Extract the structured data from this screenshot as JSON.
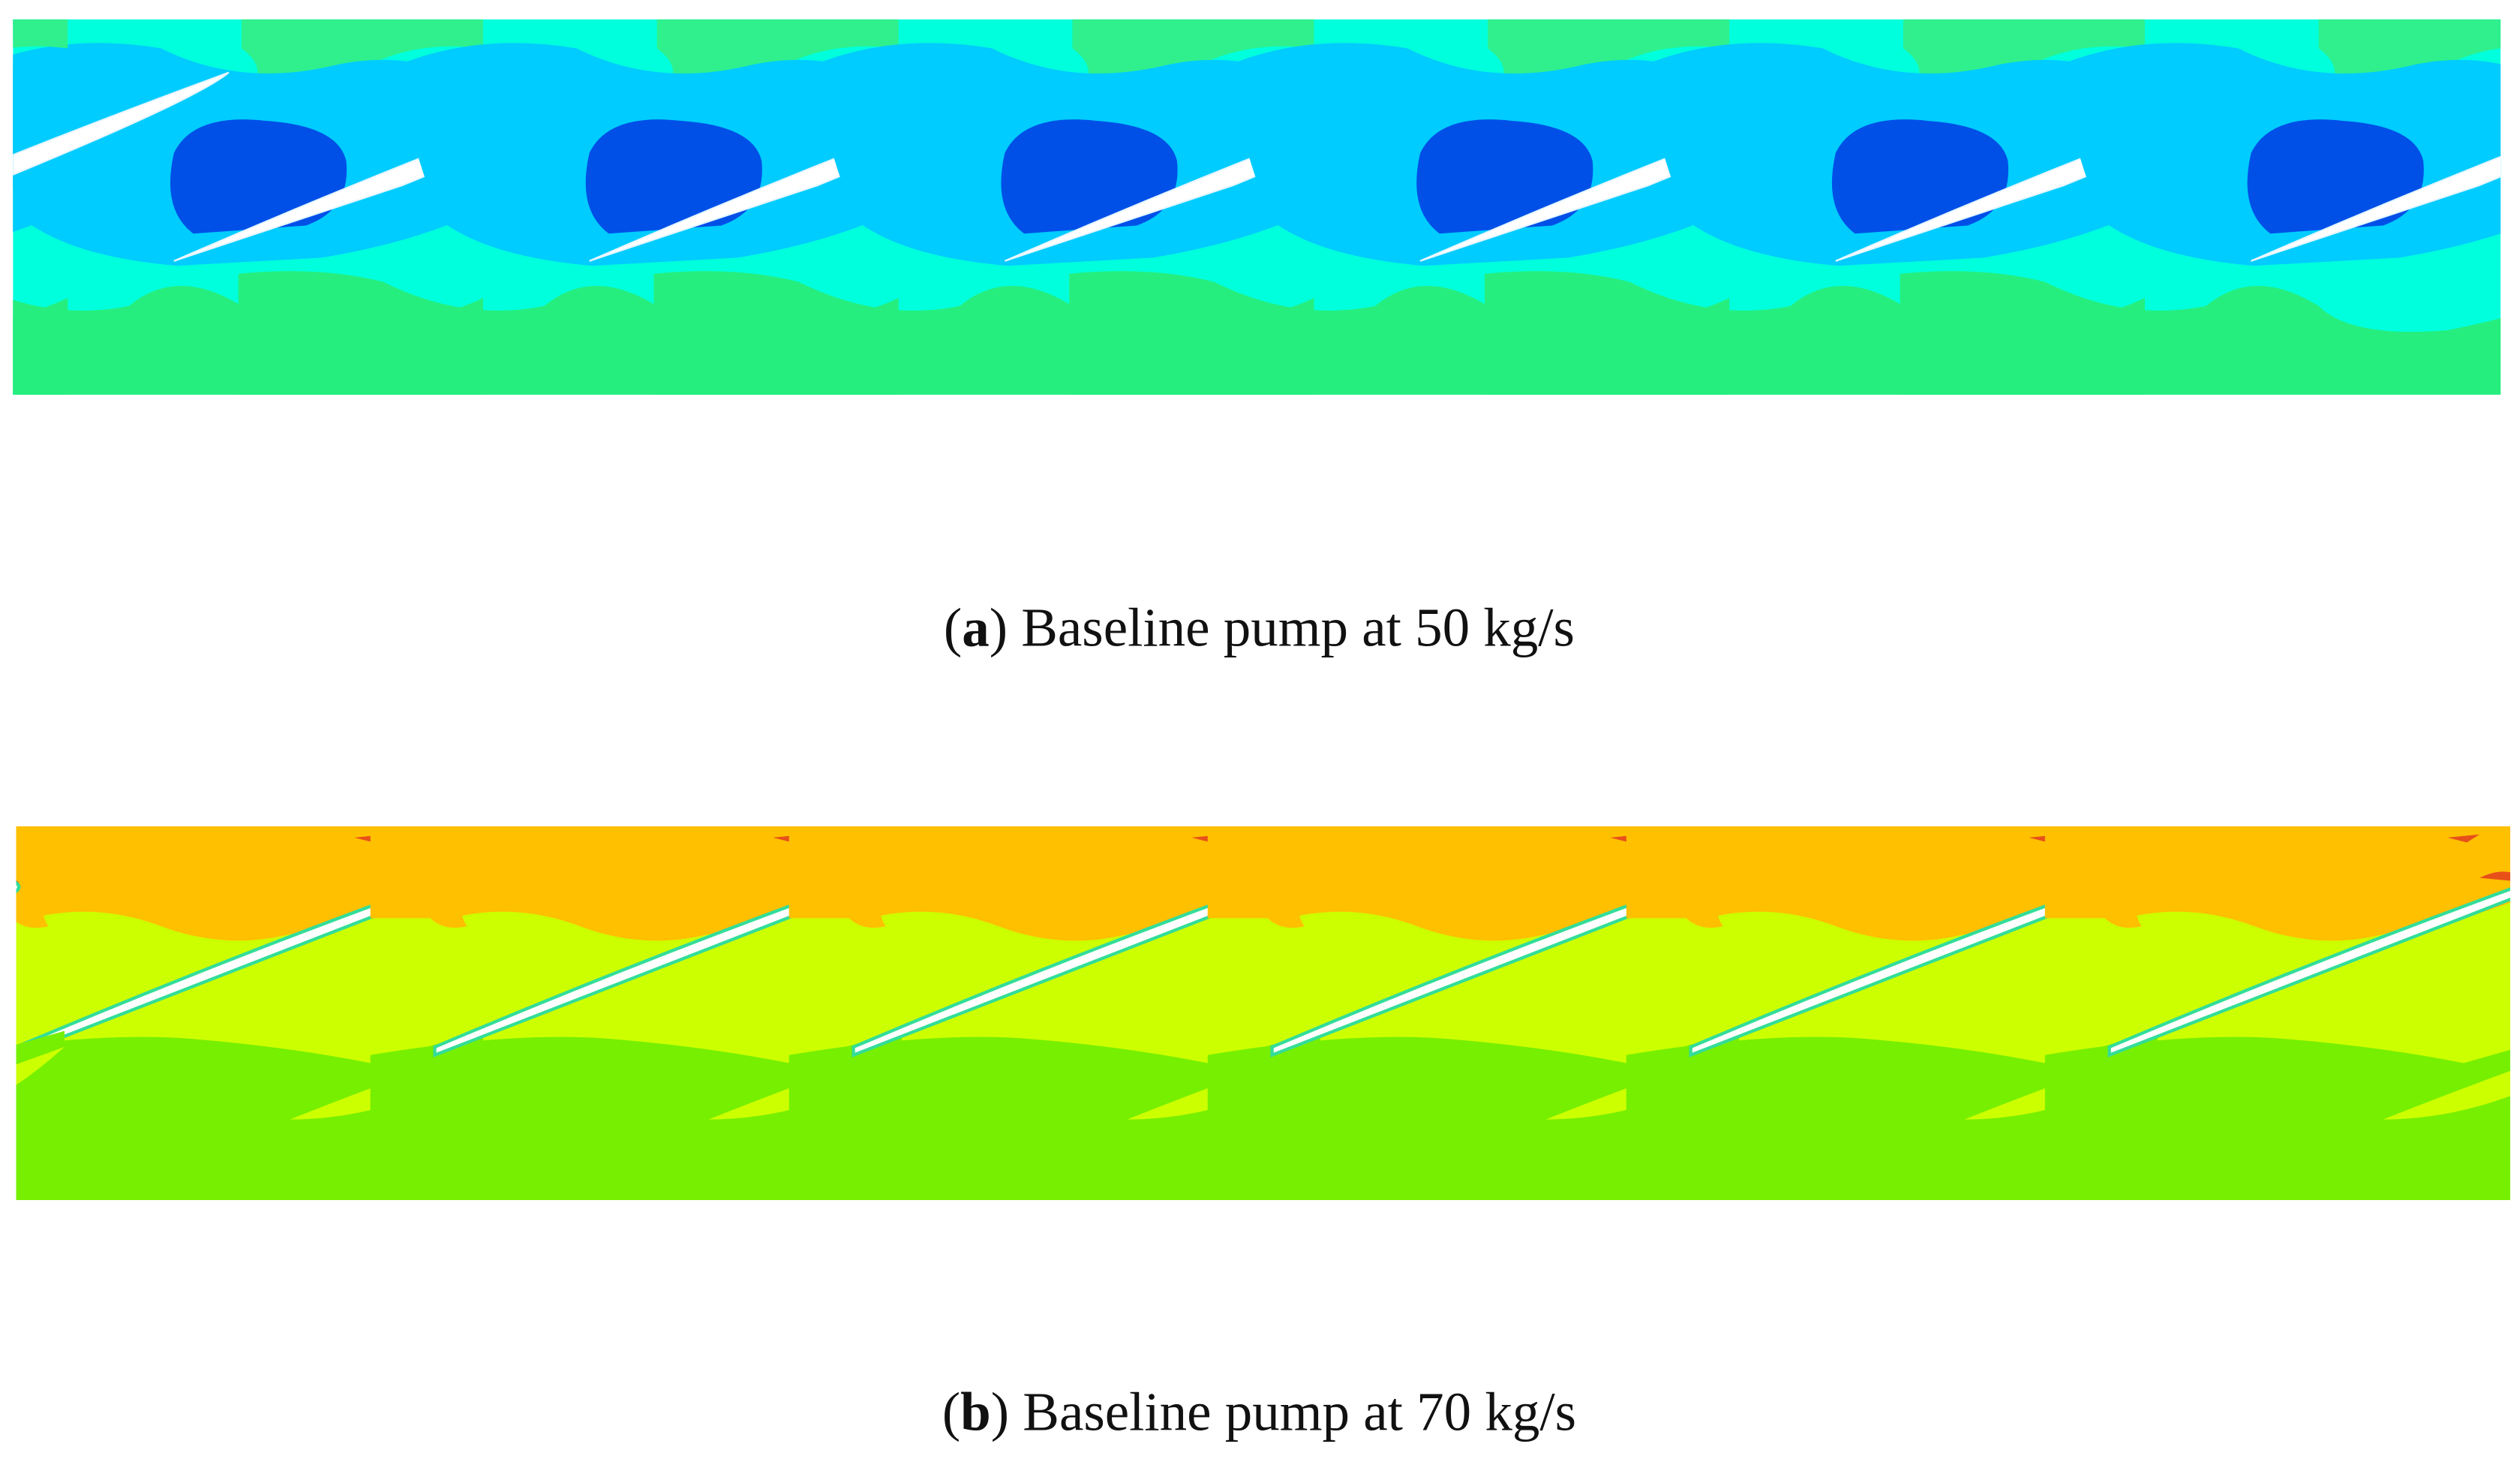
{
  "panels": [
    {
      "caption": [
        "(",
        "a",
        ") Baseline pump at 50 kg/s"
      ]
    },
    {
      "caption": [
        "(",
        "b",
        ") Baseline pump at 70 kg/s"
      ]
    }
  ]
}
